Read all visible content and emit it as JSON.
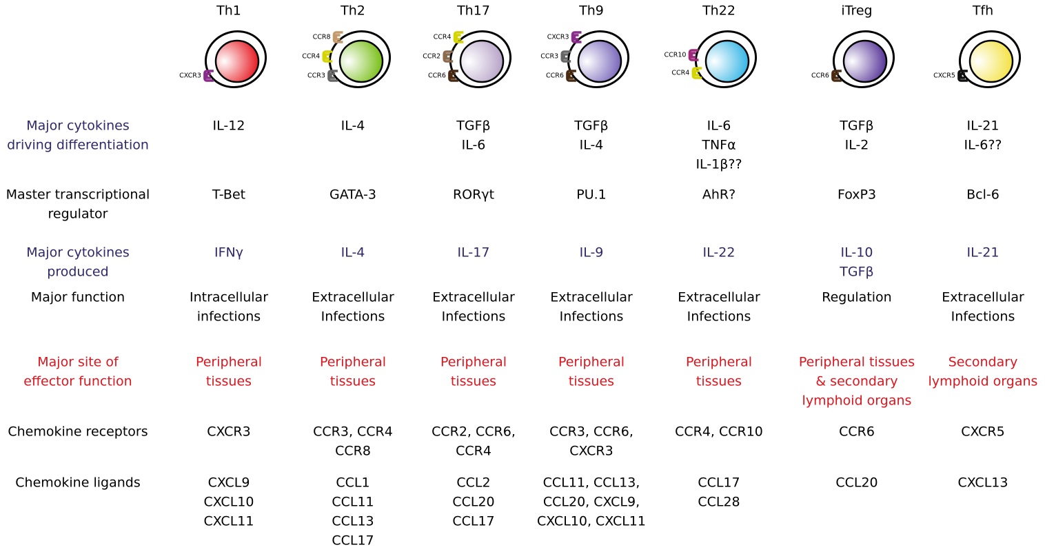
{
  "columns": [
    {
      "name": "Th1",
      "receptors": [
        "CXCR3"
      ]
    },
    {
      "name": "Th2",
      "receptors": [
        "CCR8",
        "CCR4",
        "CCR3"
      ]
    },
    {
      "name": "Th17",
      "receptors": [
        "CCR4",
        "CCR2",
        "CCR6"
      ]
    },
    {
      "name": "Th9",
      "receptors": [
        "CXCR3",
        "CCR3",
        "CCR6"
      ]
    },
    {
      "name": "Th22",
      "receptors": [
        "CCR10",
        "CCR4"
      ]
    },
    {
      "name": "iTreg",
      "receptors": [
        "CCR6"
      ]
    },
    {
      "name": "Tfh",
      "receptors": [
        "CXCR5"
      ]
    }
  ],
  "rows": [
    {
      "label": [
        "Major cytokines",
        "driving differentiation"
      ],
      "cells": [
        [
          "IL-12"
        ],
        [
          "IL-4"
        ],
        [
          "TGFβ",
          "IL-6"
        ],
        [
          "TGFβ",
          "IL-4"
        ],
        [
          "IL-6",
          "TNFα",
          "IL-1β??"
        ],
        [
          "TGFβ",
          "IL-2"
        ],
        [
          "IL-21",
          "IL-6??"
        ]
      ]
    },
    {
      "label": [
        "Master transcriptional",
        "regulator"
      ],
      "cells": [
        [
          "T-Bet"
        ],
        [
          "GATA-3"
        ],
        [
          "RORγt"
        ],
        [
          "PU.1"
        ],
        [
          "AhR?"
        ],
        [
          "FoxP3"
        ],
        [
          "Bcl-6"
        ]
      ]
    },
    {
      "label": [
        "Major cytokines",
        "produced"
      ],
      "cells": [
        [
          "IFNγ"
        ],
        [
          "IL-4"
        ],
        [
          "IL-17"
        ],
        [
          "IL-9"
        ],
        [
          "IL-22"
        ],
        [
          "IL-10",
          "TGFβ"
        ],
        [
          "IL-21"
        ]
      ]
    },
    {
      "label": [
        "Major function"
      ],
      "cells": [
        [
          "Intracellular",
          "infections"
        ],
        [
          "Extracellular",
          "Infections"
        ],
        [
          "Extracellular",
          "Infections"
        ],
        [
          "Extracellular",
          "Infections"
        ],
        [
          "Extracellular",
          "Infections"
        ],
        [
          "Regulation"
        ],
        [
          "Extracellular",
          "Infections"
        ]
      ]
    },
    {
      "label": [
        "Major site of",
        "effector function"
      ],
      "cells": [
        [
          "Peripheral",
          "tissues"
        ],
        [
          "Peripheral",
          "tissues"
        ],
        [
          "Peripheral",
          "tissues"
        ],
        [
          "Peripheral",
          "tissues"
        ],
        [
          "Peripheral",
          "tissues"
        ],
        [
          "Peripheral tissues",
          "& secondary",
          "lymphoid organs"
        ],
        [
          "Secondary",
          "lymphoid organs"
        ]
      ]
    },
    {
      "label": [
        "Chemokine receptors"
      ],
      "cells": [
        [
          "CXCR3"
        ],
        [
          "CCR3, CCR4",
          "CCR8"
        ],
        [
          "CCR2, CCR6,",
          "CCR4"
        ],
        [
          "CCR3, CCR6,",
          "CXCR3"
        ],
        [
          "CCR4, CCR10"
        ],
        [
          "CCR6"
        ],
        [
          "CXCR5"
        ]
      ]
    },
    {
      "label": [
        "Chemokine ligands"
      ],
      "cells": [
        [
          "CXCL9",
          "CXCL10",
          "CXCL11"
        ],
        [
          "CCL1",
          "CCL11",
          "CCL13",
          "CCL17"
        ],
        [
          "CCL2",
          "CCL20",
          "CCL17"
        ],
        [
          "CCL11, CCL13,",
          "CCL20, CXCL9,",
          "CXCL10, CXCL11"
        ],
        [
          "CCL17",
          "CCL28"
        ],
        [
          "CCL20"
        ],
        [
          "CXCL13"
        ]
      ]
    }
  ]
}
